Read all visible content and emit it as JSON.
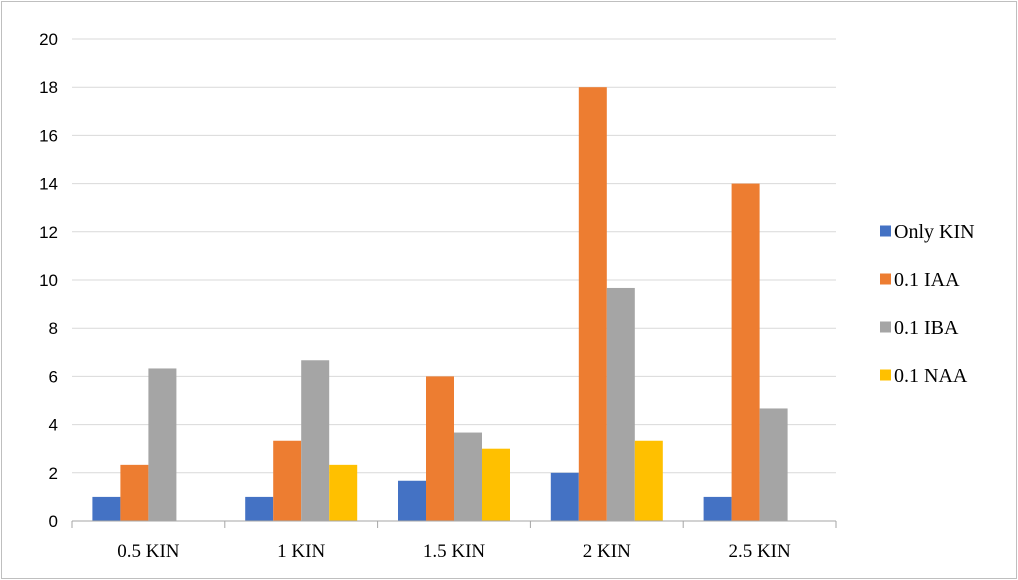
{
  "chart_data": {
    "type": "bar",
    "categories": [
      "0.5 KIN",
      "1 KIN",
      "1.5 KIN",
      "2 KIN",
      "2.5 KIN"
    ],
    "series": [
      {
        "name": "Only KIN",
        "color": "#4472c4",
        "values": [
          1,
          1,
          1.67,
          2,
          1
        ]
      },
      {
        "name": "0.1 IAA",
        "color": "#ed7d31",
        "values": [
          2.33,
          3.33,
          6,
          18,
          14
        ]
      },
      {
        "name": "0.1 IBA",
        "color": "#a5a5a5",
        "values": [
          6.33,
          6.67,
          3.67,
          9.67,
          4.67
        ]
      },
      {
        "name": "0.1 NAA",
        "color": "#ffc000",
        "values": [
          0,
          2.33,
          3,
          3.33,
          0
        ]
      }
    ],
    "ylim": [
      0,
      20
    ],
    "yticks": [
      0,
      2,
      4,
      6,
      8,
      10,
      12,
      14,
      16,
      18,
      20
    ],
    "grid": true,
    "legend_position": "right"
  }
}
